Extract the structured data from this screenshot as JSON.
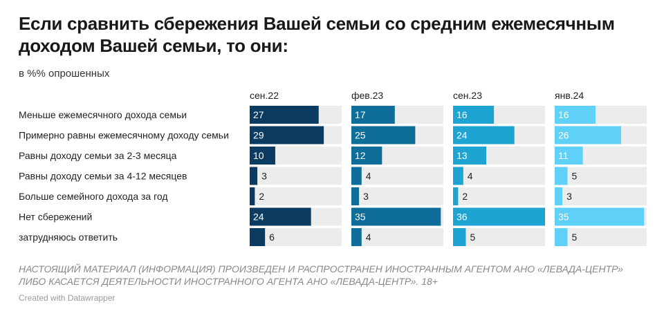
{
  "title": "Если сравнить сбережения Вашей семьи со средним ежемесячным доходом Вашей семьи, то они:",
  "subtitle": "в %% опрошенных",
  "notes": "НАСТОЯЩИЙ МАТЕРИАЛ (ИНФОРМАЦИЯ) ПРОИЗВЕДЕН И РАСПРОСТРАНЕН ИНОСТРАННЫМ АГЕНТОМ АНО «ЛЕВАДА-ЦЕНТР» ЛИБО КАСАЕТСЯ ДЕЯТЕЛЬНОСТИ ИНОСТРАННОГО АГЕНТА АНО «ЛЕВАДА-ЦЕНТР». 18+",
  "byline": "Created with Datawrapper",
  "colors": {
    "background_bar": "#ececec",
    "label_inside": "#ffffff",
    "label_outside": "#222222"
  },
  "chart_data": {
    "type": "bar",
    "orientation": "horizontal",
    "layout": "small-multiples",
    "xlim": [
      0,
      36
    ],
    "categories": [
      "Меньше ежемесячного дохода семьи",
      "Примерно равны ежемесячному доходу семьи",
      "Равны доходу семьи за 2-3 месяца",
      "Равны доходу семьи за 4-12 месяцев",
      "Больше семейного дохода за год",
      "Нет сбережений",
      "затрудняюсь ответить"
    ],
    "series": [
      {
        "name": "сен.22",
        "color": "#0b3b60",
        "values": [
          27,
          29,
          10,
          3,
          2,
          24,
          6
        ]
      },
      {
        "name": "фев.23",
        "color": "#0f6d99",
        "values": [
          17,
          25,
          12,
          4,
          3,
          35,
          4
        ]
      },
      {
        "name": "сен.23",
        "color": "#1ea4d2",
        "values": [
          16,
          24,
          13,
          4,
          2,
          36,
          5
        ]
      },
      {
        "name": "янв.24",
        "color": "#5fd0f8",
        "values": [
          16,
          26,
          11,
          5,
          3,
          35,
          5
        ]
      }
    ]
  }
}
